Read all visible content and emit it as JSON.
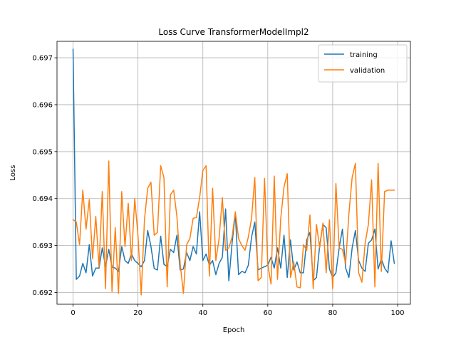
{
  "chart_data": {
    "type": "line",
    "title": "Loss Curve TransformerModelImpl2",
    "xlabel": "Epoch",
    "ylabel": "Loss",
    "xlim": [
      -4.95,
      103.95
    ],
    "ylim": [
      0.69175,
      0.69735
    ],
    "xticks": [
      0,
      20,
      40,
      60,
      80,
      100
    ],
    "xtick_labels": [
      "0",
      "20",
      "40",
      "60",
      "80",
      "100"
    ],
    "yticks": [
      0.692,
      0.693,
      0.694,
      0.695,
      0.696,
      0.697
    ],
    "ytick_labels": [
      "0.692",
      "0.693",
      "0.694",
      "0.695",
      "0.696",
      "0.697"
    ],
    "grid": true,
    "legend_position": "top-right",
    "series": [
      {
        "name": "training",
        "color": "#1f77b4",
        "x": [
          0,
          1,
          2,
          3,
          4,
          5,
          6,
          7,
          8,
          9,
          10,
          11,
          12,
          13,
          14,
          15,
          16,
          17,
          18,
          19,
          20,
          21,
          22,
          23,
          24,
          25,
          26,
          27,
          28,
          29,
          30,
          31,
          32,
          33,
          34,
          35,
          36,
          37,
          38,
          39,
          40,
          41,
          42,
          43,
          44,
          45,
          46,
          47,
          48,
          49,
          50,
          51,
          52,
          53,
          54,
          55,
          56,
          57,
          58,
          59,
          60,
          61,
          62,
          63,
          64,
          65,
          66,
          67,
          68,
          69,
          70,
          71,
          72,
          73,
          74,
          75,
          76,
          77,
          78,
          79,
          80,
          81,
          82,
          83,
          84,
          85,
          86,
          87,
          88,
          89,
          90,
          91,
          92,
          93,
          94,
          95,
          96,
          97,
          98,
          99
        ],
        "values": [
          0.69718,
          0.69228,
          0.69235,
          0.69262,
          0.69242,
          0.69302,
          0.69235,
          0.69252,
          0.69252,
          0.69295,
          0.69255,
          0.69292,
          0.69254,
          0.69252,
          0.69245,
          0.69298,
          0.69268,
          0.69262,
          0.69282,
          0.69268,
          0.69262,
          0.69255,
          0.69268,
          0.69332,
          0.69298,
          0.69251,
          0.69248,
          0.6932,
          0.6926,
          0.69255,
          0.69292,
          0.69285,
          0.69322,
          0.69248,
          0.6925,
          0.69285,
          0.69268,
          0.69298,
          0.69282,
          0.69372,
          0.69268,
          0.69282,
          0.69258,
          0.69268,
          0.69238,
          0.69262,
          0.69275,
          0.69378,
          0.69225,
          0.69305,
          0.69368,
          0.69238,
          0.69245,
          0.69242,
          0.69258,
          0.69318,
          0.6935,
          0.69248,
          0.69252,
          0.69255,
          0.69258,
          0.69275,
          0.69252,
          0.69295,
          0.69252,
          0.69322,
          0.69232,
          0.69312,
          0.69248,
          0.69265,
          0.69242,
          0.69242,
          0.69312,
          0.69328,
          0.69225,
          0.69232,
          0.693,
          0.69345,
          0.69338,
          0.6925,
          0.69232,
          0.69242,
          0.69295,
          0.69335,
          0.69252,
          0.69232,
          0.69295,
          0.69332,
          0.69268,
          0.69252,
          0.69245,
          0.69305,
          0.69312,
          0.69335,
          0.6925,
          0.69272,
          0.69252,
          0.69242,
          0.6931,
          0.69262
        ]
      },
      {
        "name": "validation",
        "color": "#ff7f0e",
        "x": [
          0,
          1,
          2,
          3,
          4,
          5,
          6,
          7,
          8,
          9,
          10,
          11,
          12,
          13,
          14,
          15,
          16,
          17,
          18,
          19,
          20,
          21,
          22,
          23,
          24,
          25,
          26,
          27,
          28,
          29,
          30,
          31,
          32,
          33,
          34,
          35,
          36,
          37,
          38,
          39,
          40,
          41,
          42,
          43,
          44,
          45,
          46,
          47,
          48,
          49,
          50,
          51,
          52,
          53,
          54,
          55,
          56,
          57,
          58,
          59,
          60,
          61,
          62,
          63,
          64,
          65,
          66,
          67,
          68,
          69,
          70,
          71,
          72,
          73,
          74,
          75,
          76,
          77,
          78,
          79,
          80,
          81,
          82,
          83,
          84,
          85,
          86,
          87,
          88,
          89,
          90,
          91,
          92,
          93,
          94,
          95,
          96,
          97,
          98,
          99
        ],
        "values": [
          0.69355,
          0.6935,
          0.69302,
          0.69418,
          0.69335,
          0.69398,
          0.69272,
          0.69362,
          0.69255,
          0.69415,
          0.69208,
          0.6948,
          0.69202,
          0.69338,
          0.69198,
          0.69415,
          0.69298,
          0.6939,
          0.69268,
          0.694,
          0.69322,
          0.69195,
          0.69355,
          0.69422,
          0.69435,
          0.69322,
          0.69328,
          0.6947,
          0.69445,
          0.69212,
          0.69408,
          0.69418,
          0.69362,
          0.69262,
          0.69198,
          0.69302,
          0.69315,
          0.69358,
          0.6936,
          0.69402,
          0.6946,
          0.6947,
          0.69235,
          0.69422,
          0.69268,
          0.69315,
          0.69402,
          0.6929,
          0.69295,
          0.69318,
          0.69372,
          0.69315,
          0.693,
          0.6929,
          0.69318,
          0.69358,
          0.69445,
          0.69225,
          0.69232,
          0.69443,
          0.6926,
          0.69218,
          0.69448,
          0.69228,
          0.69358,
          0.69425,
          0.69453,
          0.69232,
          0.69265,
          0.69212,
          0.6921,
          0.69302,
          0.6929,
          0.69365,
          0.69208,
          0.69345,
          0.69295,
          0.69348,
          0.69242,
          0.69355,
          0.69208,
          0.69432,
          0.69295,
          0.69292,
          0.69262,
          0.69368,
          0.69445,
          0.69475,
          0.69242,
          0.69222,
          0.69305,
          0.69345,
          0.6944,
          0.69212,
          0.69475,
          0.69245,
          0.69415,
          0.69418,
          0.69418,
          0.69418
        ]
      }
    ]
  }
}
